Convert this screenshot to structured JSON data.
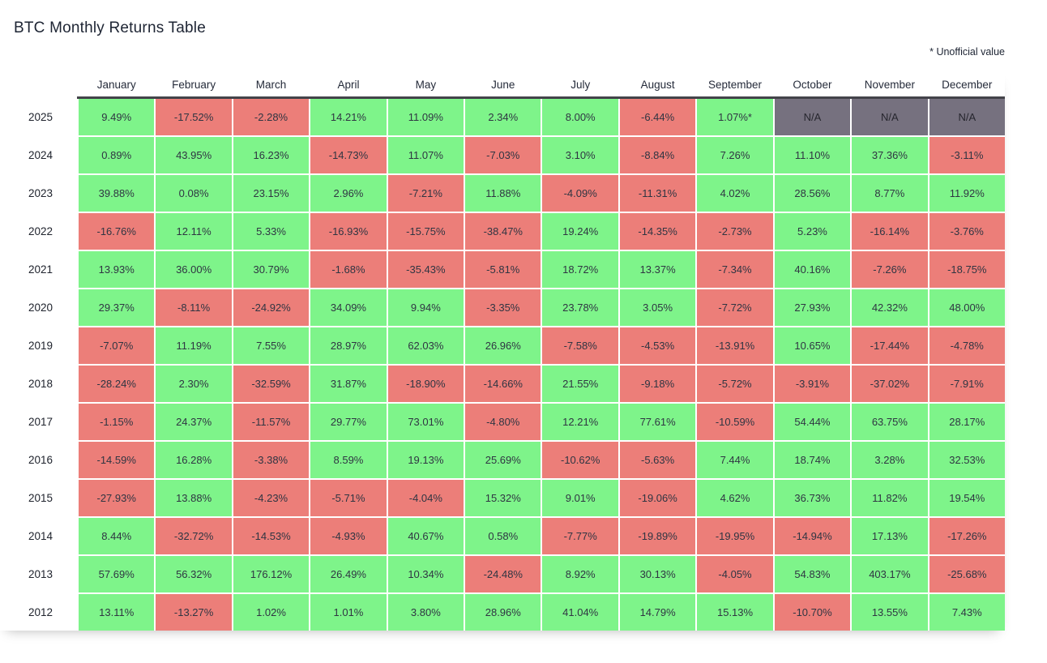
{
  "page": {
    "title": "BTC Monthly Returns Table",
    "footnote": "* Unofficial value"
  },
  "colors": {
    "positive": "#7EF48A",
    "negative": "#EC7E79",
    "na": "#76717F",
    "text": "#2F3542"
  },
  "chart_data": {
    "type": "table",
    "title": "BTC Monthly Returns Table",
    "columns": [
      "January",
      "February",
      "March",
      "April",
      "May",
      "June",
      "July",
      "August",
      "September",
      "October",
      "November",
      "December"
    ],
    "rows": [
      {
        "year": "2025",
        "values": [
          "9.49%",
          "-17.52%",
          "-2.28%",
          "14.21%",
          "11.09%",
          "2.34%",
          "8.00%",
          "-6.44%",
          "1.07%*",
          "N/A",
          "N/A",
          "N/A"
        ]
      },
      {
        "year": "2024",
        "values": [
          "0.89%",
          "43.95%",
          "16.23%",
          "-14.73%",
          "11.07%",
          "-7.03%",
          "3.10%",
          "-8.84%",
          "7.26%",
          "11.10%",
          "37.36%",
          "-3.11%"
        ]
      },
      {
        "year": "2023",
        "values": [
          "39.88%",
          "0.08%",
          "23.15%",
          "2.96%",
          "-7.21%",
          "11.88%",
          "-4.09%",
          "-11.31%",
          "4.02%",
          "28.56%",
          "8.77%",
          "11.92%"
        ]
      },
      {
        "year": "2022",
        "values": [
          "-16.76%",
          "12.11%",
          "5.33%",
          "-16.93%",
          "-15.75%",
          "-38.47%",
          "19.24%",
          "-14.35%",
          "-2.73%",
          "5.23%",
          "-16.14%",
          "-3.76%"
        ]
      },
      {
        "year": "2021",
        "values": [
          "13.93%",
          "36.00%",
          "30.79%",
          "-1.68%",
          "-35.43%",
          "-5.81%",
          "18.72%",
          "13.37%",
          "-7.34%",
          "40.16%",
          "-7.26%",
          "-18.75%"
        ]
      },
      {
        "year": "2020",
        "values": [
          "29.37%",
          "-8.11%",
          "-24.92%",
          "34.09%",
          "9.94%",
          "-3.35%",
          "23.78%",
          "3.05%",
          "-7.72%",
          "27.93%",
          "42.32%",
          "48.00%"
        ]
      },
      {
        "year": "2019",
        "values": [
          "-7.07%",
          "11.19%",
          "7.55%",
          "28.97%",
          "62.03%",
          "26.96%",
          "-7.58%",
          "-4.53%",
          "-13.91%",
          "10.65%",
          "-17.44%",
          "-4.78%"
        ]
      },
      {
        "year": "2018",
        "values": [
          "-28.24%",
          "2.30%",
          "-32.59%",
          "31.87%",
          "-18.90%",
          "-14.66%",
          "21.55%",
          "-9.18%",
          "-5.72%",
          "-3.91%",
          "-37.02%",
          "-7.91%"
        ]
      },
      {
        "year": "2017",
        "values": [
          "-1.15%",
          "24.37%",
          "-11.57%",
          "29.77%",
          "73.01%",
          "-4.80%",
          "12.21%",
          "77.61%",
          "-10.59%",
          "54.44%",
          "63.75%",
          "28.17%"
        ]
      },
      {
        "year": "2016",
        "values": [
          "-14.59%",
          "16.28%",
          "-3.38%",
          "8.59%",
          "19.13%",
          "25.69%",
          "-10.62%",
          "-5.63%",
          "7.44%",
          "18.74%",
          "3.28%",
          "32.53%"
        ]
      },
      {
        "year": "2015",
        "values": [
          "-27.93%",
          "13.88%",
          "-4.23%",
          "-5.71%",
          "-4.04%",
          "15.32%",
          "9.01%",
          "-19.06%",
          "4.62%",
          "36.73%",
          "11.82%",
          "19.54%"
        ]
      },
      {
        "year": "2014",
        "values": [
          "8.44%",
          "-32.72%",
          "-14.53%",
          "-4.93%",
          "40.67%",
          "0.58%",
          "-7.77%",
          "-19.89%",
          "-19.95%",
          "-14.94%",
          "17.13%",
          "-17.26%"
        ]
      },
      {
        "year": "2013",
        "values": [
          "57.69%",
          "56.32%",
          "176.12%",
          "26.49%",
          "10.34%",
          "-24.48%",
          "8.92%",
          "30.13%",
          "-4.05%",
          "54.83%",
          "403.17%",
          "-25.68%"
        ]
      },
      {
        "year": "2012",
        "values": [
          "13.11%",
          "-13.27%",
          "1.02%",
          "1.01%",
          "3.80%",
          "28.96%",
          "41.04%",
          "14.79%",
          "15.13%",
          "-10.70%",
          "13.55%",
          "7.43%"
        ]
      }
    ]
  }
}
